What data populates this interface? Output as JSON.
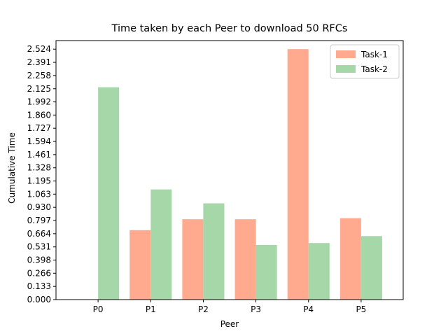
{
  "chart_data": {
    "type": "bar",
    "title": "Time taken by each Peer to download 50 RFCs",
    "xlabel": "Peer",
    "ylabel": "Cumulative Time",
    "categories": [
      "P0",
      "P1",
      "P2",
      "P3",
      "P4",
      "P5"
    ],
    "series": [
      {
        "name": "Task-1",
        "color": "#ffa98f",
        "values": [
          0,
          0.7,
          0.81,
          0.81,
          2.524,
          0.82
        ]
      },
      {
        "name": "Task-2",
        "color": "#a6d7a8",
        "values": [
          2.14,
          1.11,
          0.97,
          0.55,
          0.57,
          0.64
        ]
      }
    ],
    "ylim": [
      0,
      2.61
    ],
    "yticks": [
      "0.000",
      "0.133",
      "0.266",
      "0.398",
      "0.531",
      "0.664",
      "0.797",
      "0.930",
      "1.063",
      "1.195",
      "1.328",
      "1.461",
      "1.594",
      "1.727",
      "1.860",
      "1.992",
      "2.125",
      "2.258",
      "2.391",
      "2.524"
    ],
    "legend_position": "top-right",
    "grid": false
  }
}
